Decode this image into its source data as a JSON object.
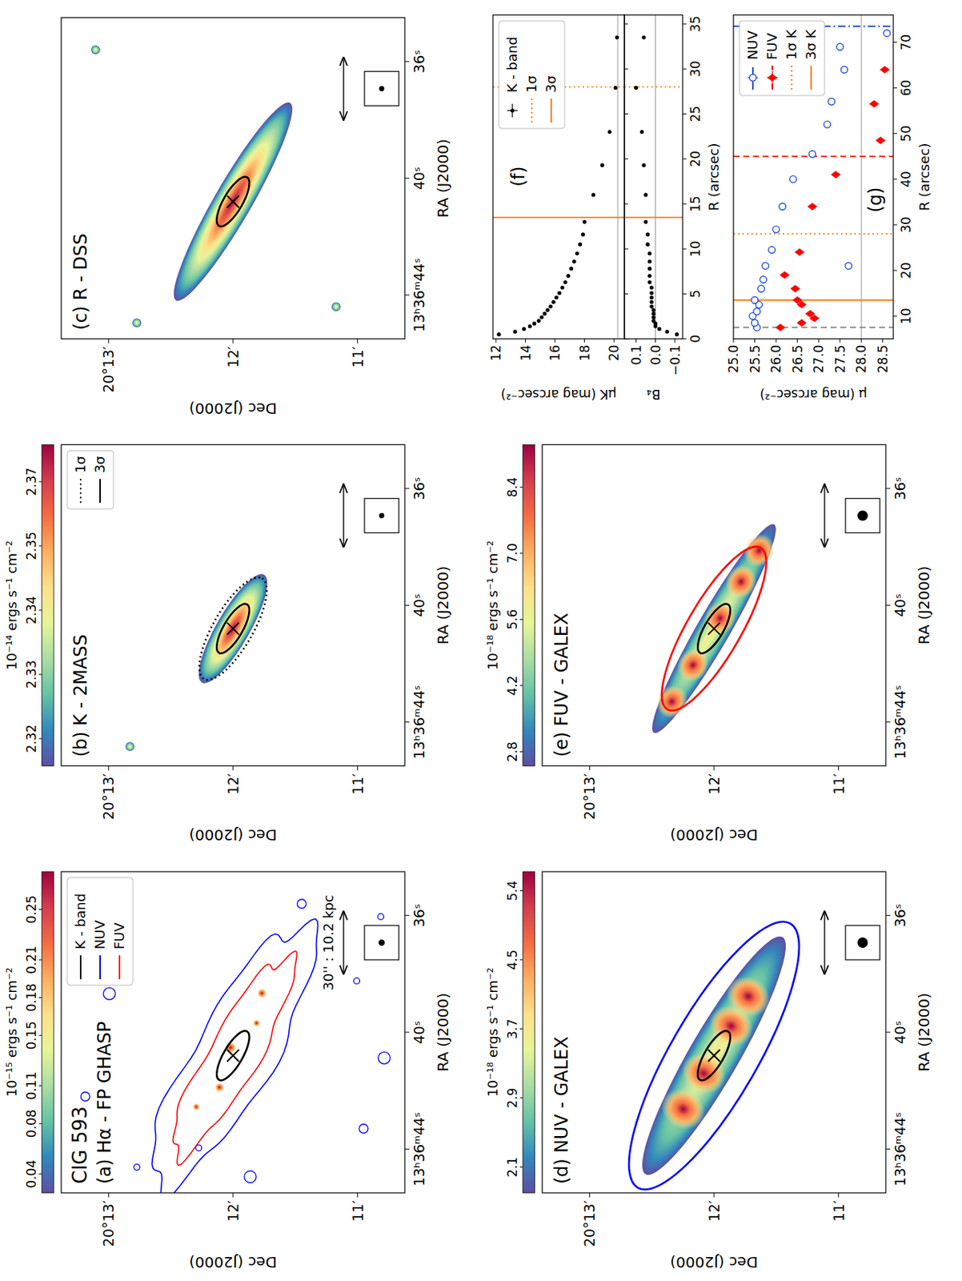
{
  "chart_data": [
    {
      "type": "image",
      "subtitle": "CIG 593",
      "title": "(a) Hα - FP GHASP",
      "xlabel": "RA (J2000)",
      "ylabel": "Dec (J2000)",
      "xlim": [
        45.5,
        34.5
      ],
      "xticks": [
        {
          "value": 44,
          "label": "13ʰ36ᵐ44ˢ"
        },
        {
          "value": 40,
          "label": "40ˢ"
        },
        {
          "value": 36,
          "label": "36ˢ"
        }
      ],
      "ylim": [
        10.62,
        13.38
      ],
      "yticks": [
        {
          "value": 11,
          "label": "11′"
        },
        {
          "value": 12,
          "label": "12′"
        },
        {
          "value": 13,
          "label": "20°13′"
        }
      ],
      "colorbar": {
        "label": "10⁻¹⁵ ergs s⁻¹ cm⁻²",
        "range": [
          0.025,
          0.28
        ],
        "ticks": [
          0.04,
          0.08,
          0.11,
          0.15,
          0.18,
          0.21,
          0.25
        ]
      },
      "center": [
        40.8,
        12.0
      ],
      "apertures": [
        {
          "a": 13.5,
          "b": 4.6,
          "color": "black",
          "line_style": "solid"
        }
      ],
      "contours": [
        {
          "name": "K - band",
          "color": "black"
        },
        {
          "name": "NUV",
          "color": "blue"
        },
        {
          "name": "FUV",
          "color": "red"
        }
      ],
      "legend": "upper right",
      "scale_bar": {
        "length": 30,
        "label": "30'' : 10.2 kpc"
      },
      "beam": 3.0
    },
    {
      "type": "image",
      "title": "(b) K - 2MASS",
      "xlabel": "RA (J2000)",
      "ylabel": "Dec (J2000)",
      "xlim": [
        45.5,
        34.5
      ],
      "xticks": [
        {
          "value": 44,
          "label": "13ʰ36ᵐ44ˢ"
        },
        {
          "value": 40,
          "label": "40ˢ"
        },
        {
          "value": 36,
          "label": "36ˢ"
        }
      ],
      "ylim": [
        10.62,
        13.38
      ],
      "yticks": [
        {
          "value": 11,
          "label": "11′"
        },
        {
          "value": 12,
          "label": "12′"
        },
        {
          "value": 13,
          "label": "20°13′"
        }
      ],
      "colorbar": {
        "label": "10⁻¹⁴ ergs s⁻¹ cm⁻²",
        "range": [
          2.313,
          2.372
        ],
        "ticks": [
          {
            "value": 2.318,
            "label": "2.32"
          },
          {
            "value": 2.3298,
            "label": "2.33"
          },
          {
            "value": 2.3416,
            "label": "2.34"
          },
          {
            "value": 2.3534,
            "label": "2.35"
          },
          {
            "value": 2.3652,
            "label": "2.37"
          }
        ]
      },
      "center": [
        40.8,
        12.0
      ],
      "apertures": [
        {
          "name": "1σ",
          "a": 28,
          "b": 9.5,
          "color": "black",
          "line_style": "dotted"
        },
        {
          "name": "3σ",
          "a": 13.5,
          "b": 4.6,
          "color": "black",
          "line_style": "solid"
        }
      ],
      "legend": "upper right",
      "scale_bar": {
        "length": 30
      },
      "beam": 2.5
    },
    {
      "type": "image",
      "title": "(c) R - DSS",
      "xlabel": "RA (J2000)",
      "ylabel": "Dec (J2000)",
      "xlim": [
        45.5,
        34.5
      ],
      "xticks": [
        {
          "value": 44,
          "label": "13ʰ36ᵐ44ˢ"
        },
        {
          "value": 40,
          "label": "40ˢ"
        },
        {
          "value": 36,
          "label": "36ˢ"
        }
      ],
      "ylim": [
        10.62,
        13.38
      ],
      "yticks": [
        {
          "value": 11,
          "label": "11′"
        },
        {
          "value": 12,
          "label": "12′"
        },
        {
          "value": 13,
          "label": "20°13′"
        }
      ],
      "center": [
        40.8,
        12.0
      ],
      "apertures": [
        {
          "a": 13.5,
          "b": 4.6,
          "color": "black",
          "line_style": "solid"
        }
      ],
      "scale_bar": {
        "length": 30
      },
      "beam": 2.5
    },
    {
      "type": "image",
      "title": "(d) NUV - GALEX",
      "xlabel": "RA (J2000)",
      "ylabel": "Dec (J2000)",
      "xlim": [
        45.5,
        34.5
      ],
      "xticks": [
        {
          "value": 44,
          "label": "13ʰ36ᵐ44ˢ"
        },
        {
          "value": 40,
          "label": "40ˢ"
        },
        {
          "value": 36,
          "label": "36ˢ"
        }
      ],
      "ylim": [
        10.62,
        13.38
      ],
      "yticks": [
        {
          "value": 11,
          "label": "11′"
        },
        {
          "value": 12,
          "label": "12′"
        },
        {
          "value": 13,
          "label": "20°13′"
        }
      ],
      "colorbar": {
        "label": "10⁻¹⁸ ergs s⁻¹ cm⁻²",
        "range": [
          1.75,
          5.6
        ],
        "ticks": [
          {
            "value": 2.06,
            "label": "2.1"
          },
          {
            "value": 2.888,
            "label": "2.9"
          },
          {
            "value": 3.716,
            "label": "3.7"
          },
          {
            "value": 4.544,
            "label": "4.5"
          },
          {
            "value": 5.372,
            "label": "5.4"
          }
        ]
      },
      "center": [
        40.8,
        12.0
      ],
      "apertures": [
        {
          "a": 13.5,
          "b": 4.6,
          "color": "black",
          "line_style": "solid"
        },
        {
          "a": 73.5,
          "b": 21,
          "color": "blue",
          "line_style": "solid"
        }
      ],
      "scale_bar": {
        "length": 30
      },
      "beam": 5.0
    },
    {
      "type": "image",
      "title": "(e) FUV - GALEX",
      "xlabel": "RA (J2000)",
      "ylabel": "Dec (J2000)",
      "xlim": [
        45.5,
        34.5
      ],
      "xticks": [
        {
          "value": 44,
          "label": "13ʰ36ᵐ44ˢ"
        },
        {
          "value": 40,
          "label": "40ˢ"
        },
        {
          "value": 36,
          "label": "36ˢ"
        }
      ],
      "ylim": [
        10.62,
        13.38
      ],
      "yticks": [
        {
          "value": 11,
          "label": "11′"
        },
        {
          "value": 12,
          "label": "12′"
        },
        {
          "value": 13,
          "label": "20°13′"
        }
      ],
      "colorbar": {
        "label": "10⁻¹⁸ ergs s⁻¹ cm⁻²",
        "range": [
          2.5,
          9.3
        ],
        "ticks": [
          2.8,
          4.2,
          5.6,
          {
            "value": 7,
            "label": "7.0"
          },
          8.4
        ]
      },
      "center": [
        40.8,
        12.0
      ],
      "apertures": [
        {
          "a": 13.5,
          "b": 4.6,
          "color": "black",
          "line_style": "solid"
        },
        {
          "a": 45,
          "b": 13,
          "color": "red",
          "line_style": "solid"
        }
      ],
      "scale_bar": {
        "length": 30
      },
      "beam": 5.0
    },
    {
      "type": "scatter",
      "title": "(f)",
      "ylabel": "μK (mag arcsec⁻²)",
      "tick_labels": "y",
      "series": [
        {
          "name": "K - band",
          "color": "black",
          "marker": "point",
          "x": [
            0.5,
            0.8,
            1.1,
            1.4,
            1.7,
            2.0,
            2.4,
            2.8,
            3.2,
            3.6,
            4.1,
            4.6,
            5.1,
            5.7,
            6.3,
            7.0,
            7.8,
            8.6,
            9.5,
            10.5,
            11.6,
            13.0,
            16.0,
            19.3,
            23.0,
            27.9,
            33.5
          ],
          "values": [
            12.2,
            13.3,
            13.9,
            14.3,
            14.6,
            14.9,
            15.1,
            15.3,
            15.5,
            15.7,
            15.9,
            16.1,
            16.3,
            16.5,
            16.7,
            16.9,
            17.1,
            17.3,
            17.5,
            17.7,
            17.9,
            18.0,
            18.6,
            19.2,
            19.7,
            20.1,
            20.2
          ]
        }
      ],
      "xlim": [
        0,
        36
      ],
      "xticks": [
        0,
        5,
        10,
        15,
        20,
        25,
        30,
        35
      ],
      "ylim": [
        20.7,
        11.8
      ],
      "yticks": [
        12,
        14,
        16,
        18,
        20
      ],
      "hlines": [
        20.25
      ],
      "vlines": [
        {
          "x": 28,
          "name": "1σ",
          "color": "#ff7f0e",
          "line_style": "dotted"
        },
        {
          "x": 13.5,
          "name": "3σ",
          "color": "#ff7f0e",
          "line_style": "solid"
        }
      ],
      "legend": "upper right"
    },
    {
      "type": "scatter",
      "xlabel": "R (arcsec)",
      "ylabel": "B₄",
      "series": [
        {
          "color": "black",
          "marker": "point",
          "x": [
            0.5,
            0.8,
            1.1,
            1.4,
            1.7,
            2.0,
            2.4,
            2.8,
            3.2,
            3.6,
            4.1,
            4.6,
            5.1,
            5.7,
            6.3,
            7.0,
            7.8,
            8.6,
            9.5,
            10.5,
            11.6,
            13.0,
            16.0,
            19.3,
            23.0,
            27.9,
            33.5
          ],
          "values": [
            -0.11,
            -0.06,
            -0.02,
            0.0,
            0.0,
            0.01,
            0.01,
            0.01,
            0.01,
            0.02,
            0.02,
            0.02,
            0.02,
            0.02,
            0.03,
            0.03,
            0.03,
            0.03,
            0.03,
            0.04,
            0.04,
            0.05,
            0.05,
            0.06,
            0.07,
            0.1,
            0.06
          ]
        }
      ],
      "xlim": [
        0,
        36
      ],
      "xticks": [
        0,
        5,
        10,
        15,
        20,
        25,
        30,
        35
      ],
      "ylim": [
        -0.14,
        0.16
      ],
      "yticks": [
        {
          "value": -0.1,
          "label": "−0.1"
        },
        {
          "value": 0,
          "label": "0.0"
        },
        0.1
      ],
      "hlines": [
        0
      ],
      "vlines": [
        {
          "x": 28,
          "color": "#ff7f0e",
          "line_style": "dotted"
        },
        {
          "x": 13.5,
          "color": "#ff7f0e",
          "line_style": "solid"
        }
      ]
    },
    {
      "type": "scatter",
      "title": "(g)",
      "xlabel": "R (arcsec)",
      "ylabel": "μ (mag arcsec⁻²)",
      "series": [
        {
          "name": "NUV",
          "color": "#1f4fd8",
          "marker": "open_circle",
          "line_style": "dashdot",
          "limit": 73.5,
          "x": [
            7.5,
            8.5,
            10,
            11,
            12.5,
            13.5,
            16,
            18,
            21,
            21,
            24.5,
            29,
            34,
            40,
            45.5,
            52,
            57,
            64,
            69,
            72
          ],
          "values": [
            25.55,
            25.5,
            25.45,
            25.55,
            25.6,
            25.5,
            25.65,
            25.7,
            25.75,
            27.7,
            25.9,
            26.0,
            26.15,
            26.4,
            26.85,
            27.2,
            27.3,
            27.6,
            27.5,
            28.6
          ]
        },
        {
          "name": "FUV",
          "color": "red",
          "marker": "diamond",
          "line_style": "dashed",
          "limit": 45,
          "x": [
            7.5,
            8.5,
            9.5,
            10.5,
            12.5,
            13.5,
            16,
            19,
            24,
            34,
            41,
            48.5,
            56.5,
            64
          ],
          "values": [
            26.1,
            26.6,
            26.9,
            26.8,
            26.6,
            26.5,
            26.45,
            26.2,
            26.55,
            26.85,
            27.4,
            28.45,
            28.3,
            28.55
          ]
        }
      ],
      "vlines": [
        {
          "x": 7.5,
          "color": "gray",
          "line_style": "dashed"
        },
        {
          "x": 28,
          "name": "1σ K",
          "color": "#ff7f0e",
          "line_style": "dotted"
        },
        {
          "x": 13.5,
          "name": "3σ K",
          "color": "#ff7f0e",
          "line_style": "solid"
        }
      ],
      "hlines": [
        28
      ],
      "xlim": [
        5,
        76
      ],
      "xticks": [
        10,
        20,
        30,
        40,
        50,
        60,
        70
      ],
      "ylim": [
        28.75,
        25
      ],
      "yticks": [
        {
          "value": 25,
          "label": "25.0"
        },
        25.5,
        {
          "value": 26,
          "label": "26.0"
        },
        26.5,
        {
          "value": 27,
          "label": "27.0"
        },
        27.5,
        {
          "value": 28,
          "label": "28.0"
        },
        28.5
      ],
      "legend": "upper right"
    }
  ]
}
